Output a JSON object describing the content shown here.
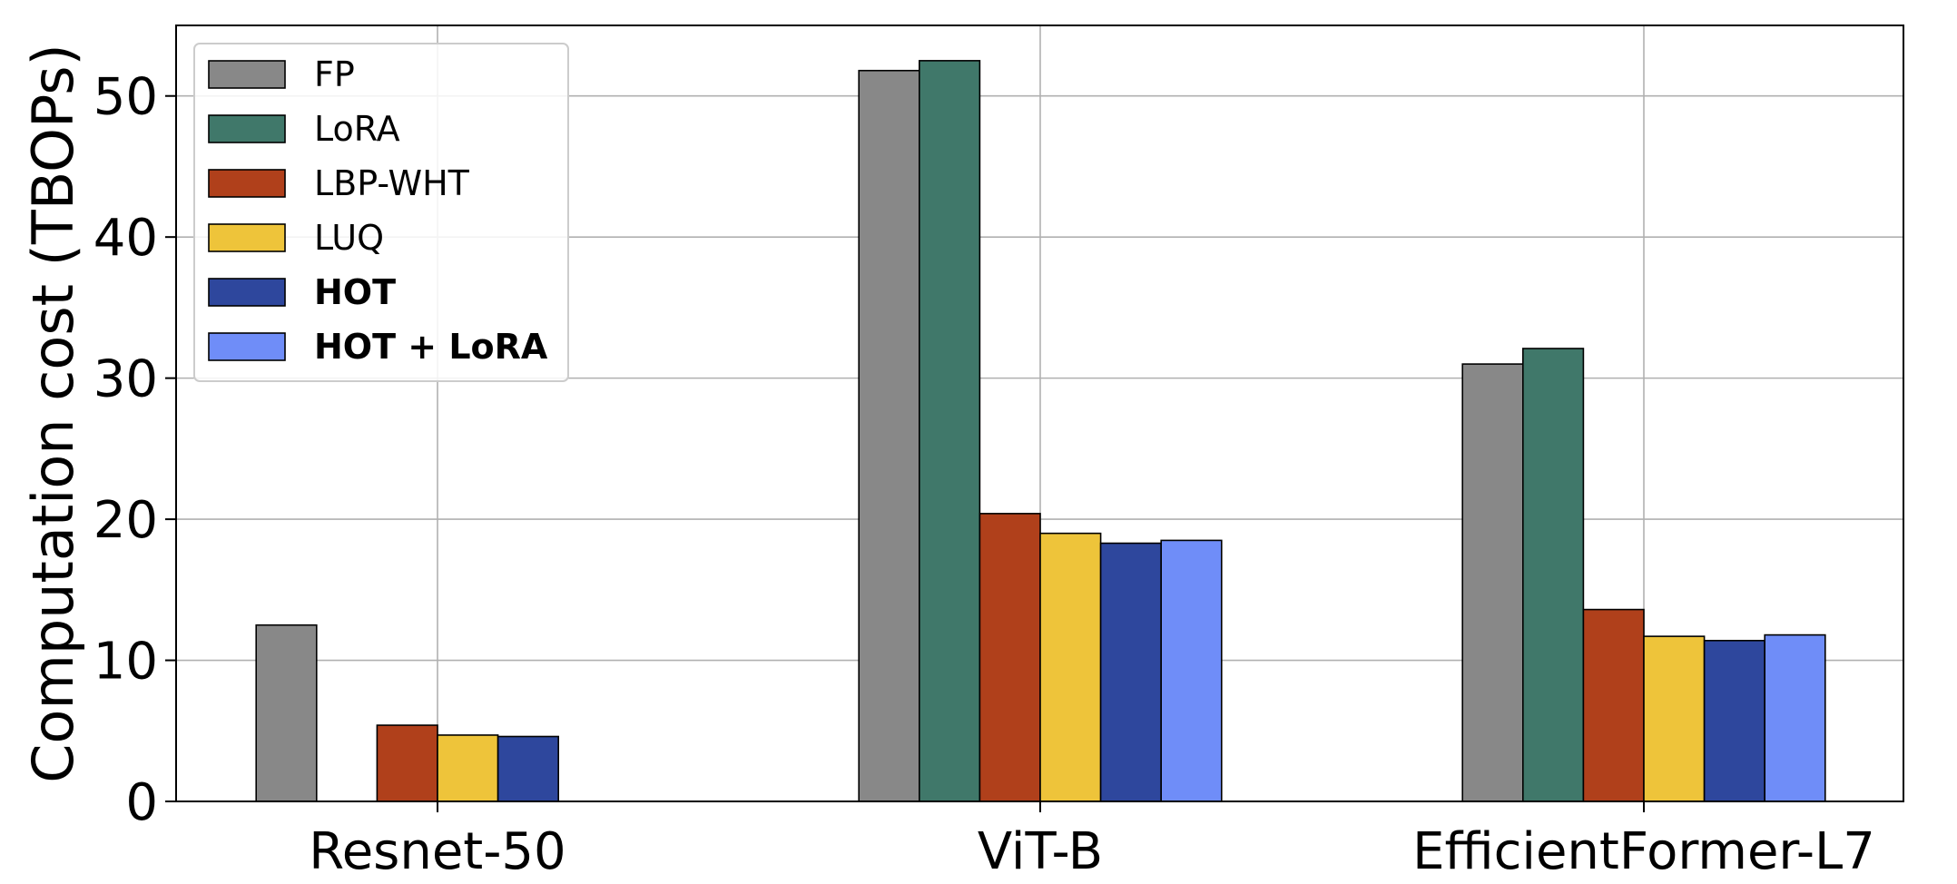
{
  "chart_data": {
    "type": "bar",
    "title": "",
    "xlabel": "",
    "ylabel": "Computation cost (TBOPs)",
    "ylim": [
      0,
      55
    ],
    "yticks": [
      0,
      10,
      20,
      30,
      40,
      50
    ],
    "grid": true,
    "legend_position": "top-left",
    "categories": [
      "Resnet-50",
      "ViT-B",
      "EfficientFormer-L7"
    ],
    "series": [
      {
        "name": "FP",
        "color": "#888888",
        "bold": false,
        "values": [
          12.5,
          51.8,
          31.0
        ]
      },
      {
        "name": "LoRA",
        "color": "#40786a",
        "bold": false,
        "values": [
          0,
          52.5,
          32.1
        ]
      },
      {
        "name": "LBP-WHT",
        "color": "#b0401b",
        "bold": false,
        "values": [
          5.4,
          20.4,
          13.6
        ]
      },
      {
        "name": "LUQ",
        "color": "#eec43a",
        "bold": false,
        "values": [
          4.7,
          19.0,
          11.7
        ]
      },
      {
        "name": "HOT",
        "color": "#2e479d",
        "bold": true,
        "values": [
          4.6,
          18.3,
          11.4
        ]
      },
      {
        "name": "HOT + LoRA",
        "color": "#6f8df8",
        "bold": true,
        "values": [
          0,
          18.5,
          11.8
        ]
      }
    ]
  }
}
